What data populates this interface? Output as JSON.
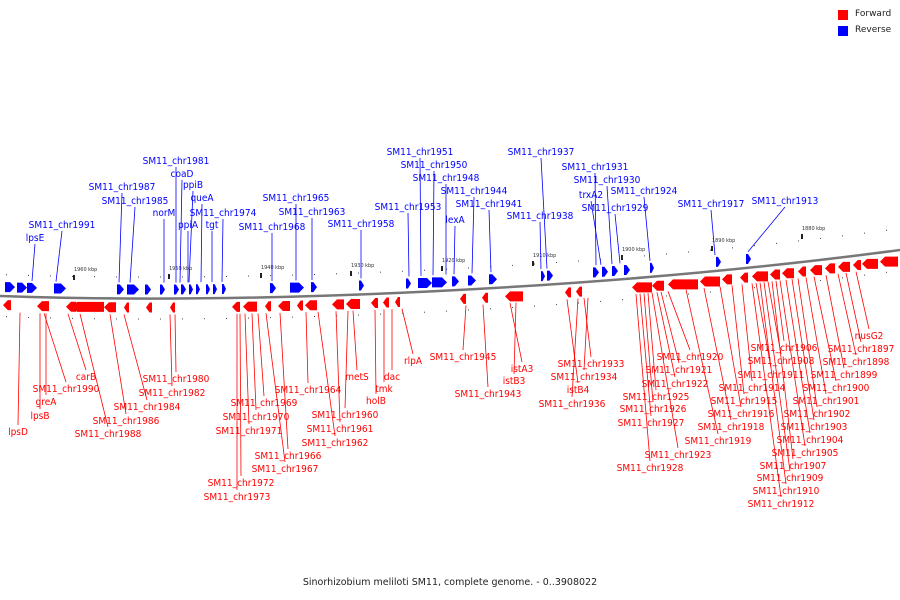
{
  "legend": {
    "forward_label": "Forward",
    "reverse_label": "Reverse",
    "forward_color": "#ff0000",
    "reverse_color": "#0000ff"
  },
  "caption": "Sinorhizobium meliloti SM11, complete genome. - 0..3908022",
  "scale_ticks": [
    "1960 kbp",
    "1950 kbp",
    "1940 kbp",
    "1930 kbp",
    "1920 kbp",
    "1910 kbp",
    "1900 kbp",
    "1890 kbp",
    "1880 kbp"
  ],
  "reverse_gene_labels": [
    "lpsE",
    "SM11_chr1991",
    "SM11_chr1987",
    "SM11_chr1985",
    "SM11_chr1981",
    "coaD",
    "norM",
    "ppiB",
    "ppiA",
    "queA",
    "tgt",
    "SM11_chr1974",
    "SM11_chr1968",
    "SM11_chr1965",
    "SM11_chr1963",
    "SM11_chr1958",
    "SM11_chr1953",
    "SM11_chr1951",
    "SM11_chr1950",
    "SM11_chr1948",
    "lexA",
    "SM11_chr1944",
    "SM11_chr1941",
    "SM11_chr1938",
    "SM11_chr1937",
    "SM11_chr1931",
    "trxA2",
    "SM11_chr1930",
    "SM11_chr1929",
    "SM11_chr1924",
    "SM11_chr1917",
    "SM11_chr1913"
  ],
  "forward_gene_labels": [
    "lpsD",
    "lpsB",
    "greA",
    "SM11_chr1990",
    "carB",
    "SM11_chr1988",
    "SM11_chr1986",
    "SM11_chr1984",
    "SM11_chr1982",
    "SM11_chr1980",
    "SM11_chr1973",
    "SM11_chr1972",
    "SM11_chr1971",
    "SM11_chr1970",
    "SM11_chr1969",
    "SM11_chr1967",
    "SM11_chr1966",
    "SM11_chr1964",
    "SM11_chr1962",
    "SM11_chr1961",
    "SM11_chr1960",
    "metS",
    "holB",
    "tmk",
    "dac",
    "rlpA",
    "SM11_chr1945",
    "SM11_chr1943",
    "istA3",
    "istB3",
    "istB4",
    "SM11_chr1936",
    "SM11_chr1933",
    "SM11_chr1934",
    "SM11_chr1928",
    "SM11_chr1927",
    "SM11_chr1926",
    "SM11_chr1925",
    "SM11_chr1923",
    "SM11_chr1922",
    "SM11_chr1921",
    "SM11_chr1920",
    "SM11_chr1919",
    "SM11_chr1918",
    "SM11_chr1916",
    "SM11_chr1915",
    "SM11_chr1914",
    "SM11_chr1912",
    "SM11_chr1911",
    "SM11_chr1910",
    "SM11_chr1909",
    "SM11_chr1908",
    "SM11_chr1907",
    "SM11_chr1906",
    "SM11_chr1905",
    "SM11_chr1904",
    "SM11_chr1903",
    "SM11_chr1902",
    "SM11_chr1901",
    "SM11_chr1900",
    "SM11_chr1899",
    "SM11_chr1898",
    "SM11_chr1897",
    "nusG2"
  ]
}
